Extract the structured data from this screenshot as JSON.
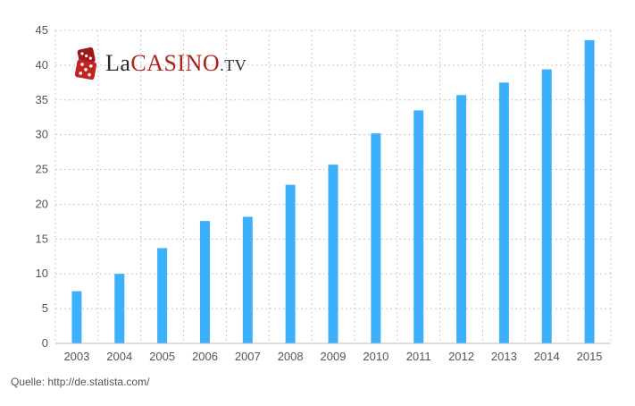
{
  "logo": {
    "prefix": "La",
    "main": "CASINO",
    "suffix": ".TV",
    "icon": "dice-icon",
    "accent_color": "#b0201e"
  },
  "source": "Quelle: http://de.statista.com/",
  "chart_data": {
    "type": "bar",
    "categories": [
      "2003",
      "2004",
      "2005",
      "2006",
      "2007",
      "2008",
      "2009",
      "2010",
      "2011",
      "2012",
      "2013",
      "2014",
      "2015"
    ],
    "values": [
      7.5,
      10,
      13.7,
      17.6,
      18.2,
      22.8,
      25.7,
      30.2,
      33.5,
      35.7,
      37.5,
      39.4,
      43.6
    ],
    "yticks": [
      0,
      5,
      10,
      15,
      20,
      25,
      30,
      35,
      40,
      45
    ],
    "ylim": [
      0,
      45
    ],
    "grid": true,
    "bar_color": "#3cb0fb",
    "title": "",
    "xlabel": "",
    "ylabel": ""
  }
}
